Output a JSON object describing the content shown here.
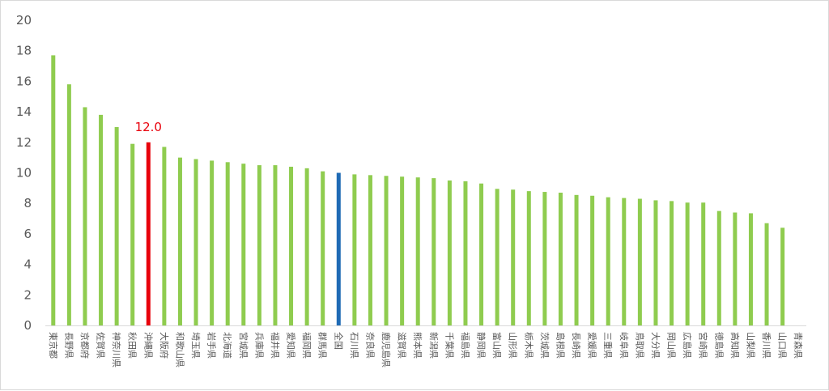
{
  "chart_data": {
    "type": "bar",
    "categories": [
      "東京都",
      "長野県",
      "京都府",
      "佐賀県",
      "神奈川県",
      "秋田県",
      "沖縄県",
      "大阪府",
      "和歌山県",
      "埼玉県",
      "岩手県",
      "北海道",
      "宮城県",
      "兵庫県",
      "福井県",
      "愛知県",
      "福岡県",
      "群馬県",
      "全国",
      "石川県",
      "奈良県",
      "鹿児島県",
      "滋賀県",
      "熊本県",
      "新潟県",
      "千葉県",
      "福島県",
      "静岡県",
      "富山県",
      "山形県",
      "栃木県",
      "茨城県",
      "島根県",
      "長崎県",
      "愛媛県",
      "三重県",
      "岐阜県",
      "鳥取県",
      "大分県",
      "岡山県",
      "広島県",
      "宮崎県",
      "徳島県",
      "高知県",
      "山梨県",
      "香川県",
      "山口県",
      "青森県"
    ],
    "values": [
      17.7,
      15.8,
      14.3,
      13.8,
      13.0,
      11.9,
      12.0,
      11.7,
      11.0,
      10.9,
      10.8,
      10.7,
      10.6,
      10.5,
      10.5,
      10.4,
      10.3,
      10.1,
      10.0,
      9.9,
      9.85,
      9.8,
      9.75,
      9.7,
      9.65,
      9.5,
      9.45,
      9.3,
      8.95,
      8.9,
      8.8,
      8.75,
      8.7,
      8.55,
      8.5,
      8.4,
      8.35,
      8.3,
      8.2,
      8.15,
      8.05,
      8.05,
      7.5,
      7.4,
      7.35,
      6.7,
      6.4,
      0
    ],
    "ylim": [
      0,
      20
    ],
    "yticks": [
      "0",
      "2",
      "4",
      "6",
      "8",
      "10",
      "12",
      "14",
      "16",
      "18",
      "20"
    ],
    "grid": false,
    "colors": {
      "default": "#8fcc4f",
      "highlight": "#e8000b",
      "national": "#1f6bb5"
    },
    "highlight_category": "沖縄県",
    "national_category": "全国",
    "annotation": {
      "category": "沖縄県",
      "text": "12.0"
    }
  }
}
